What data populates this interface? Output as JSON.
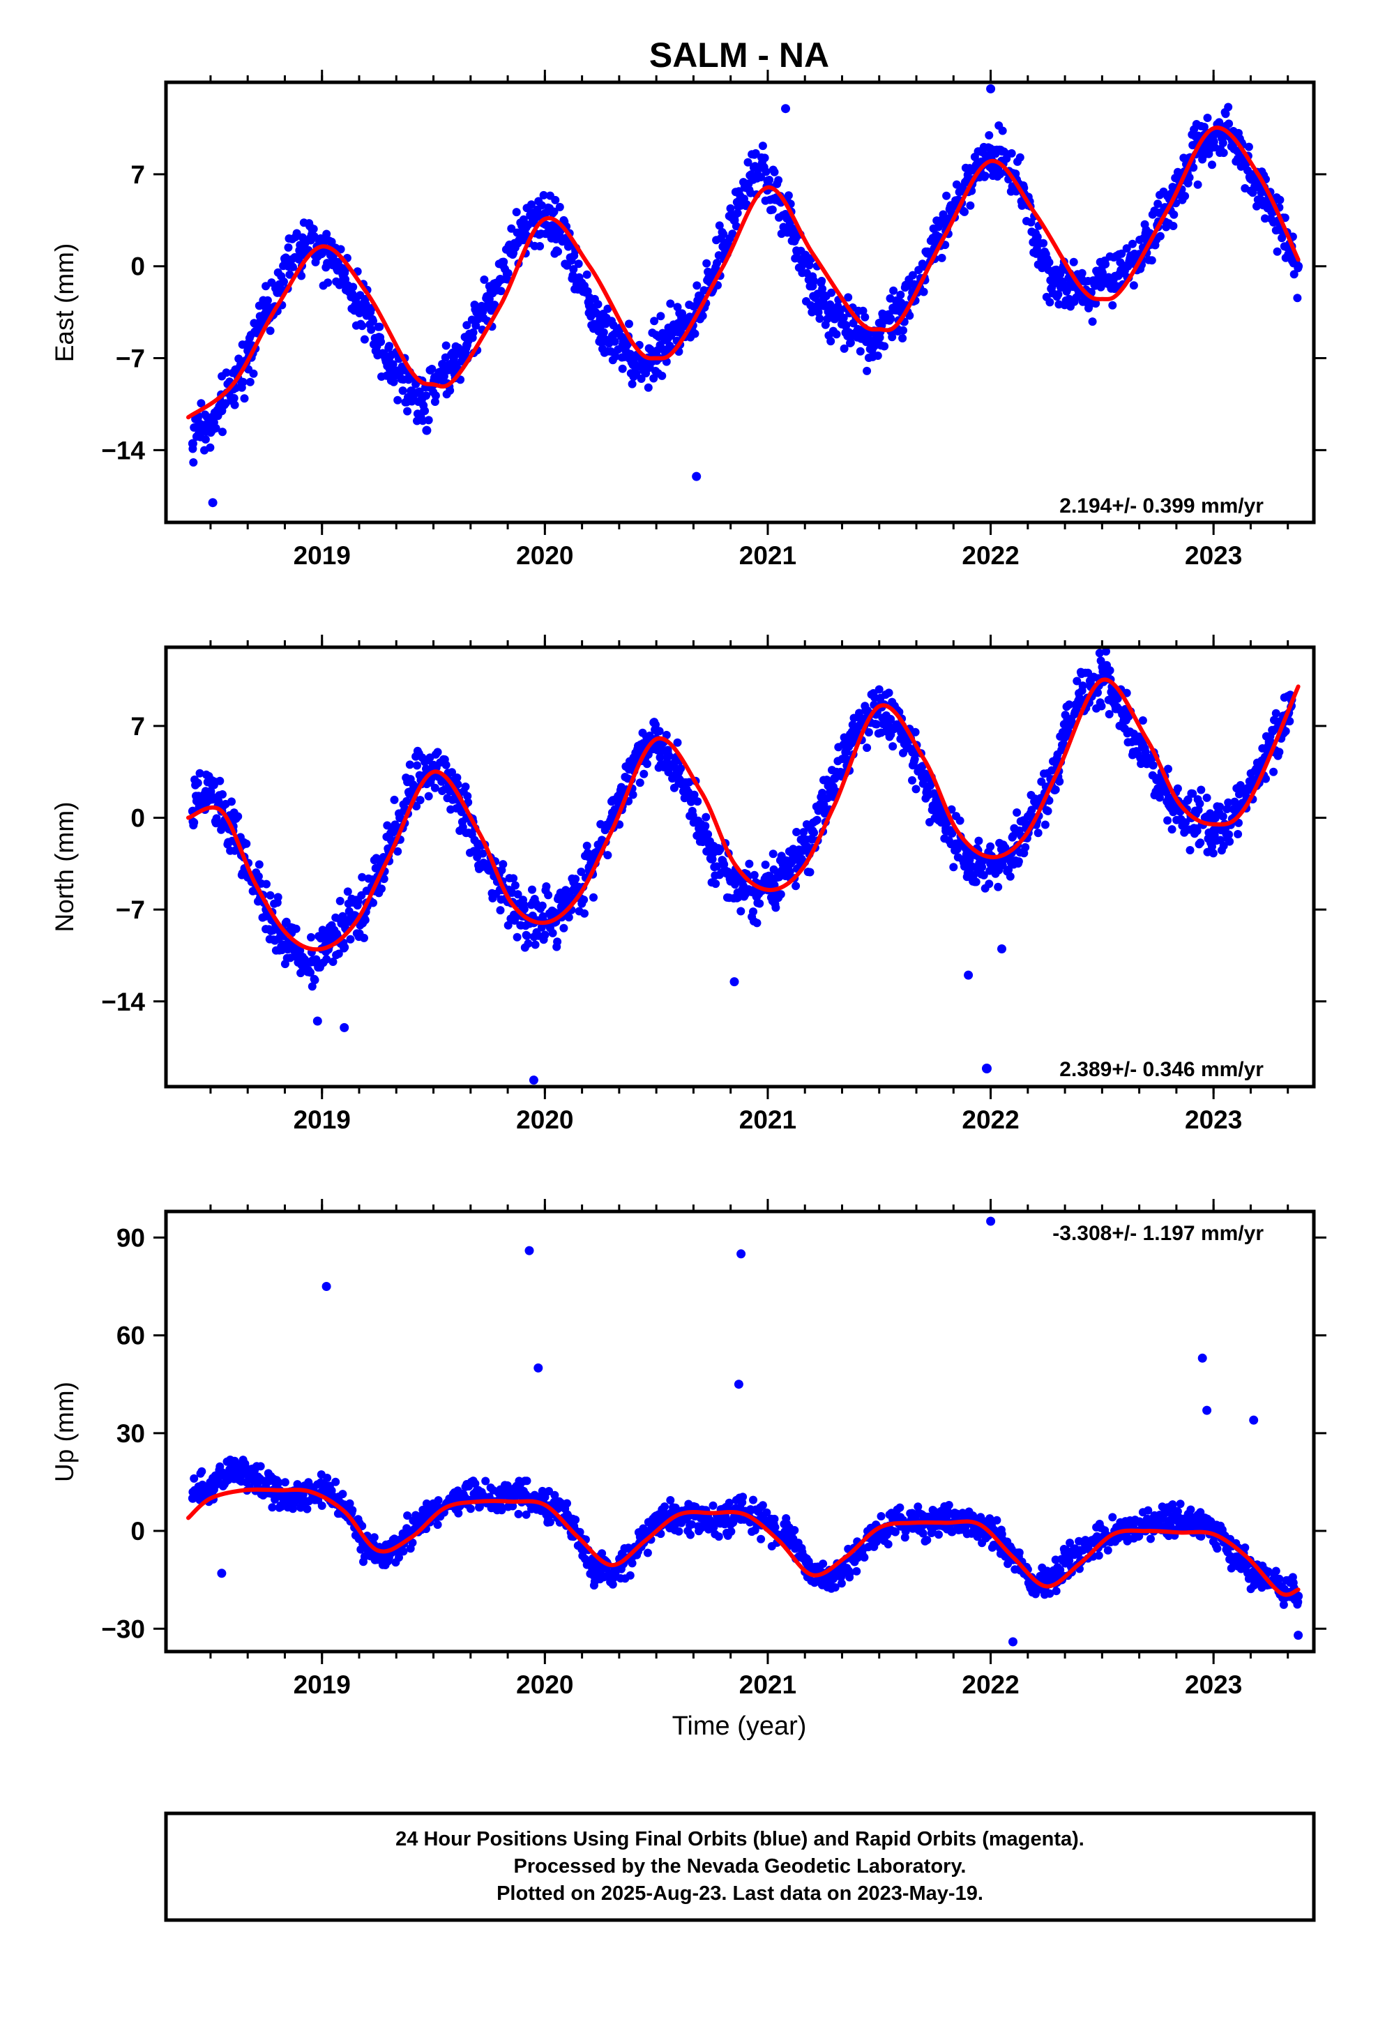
{
  "title": "SALM - NA",
  "xlabel": "Time (year)",
  "colors": {
    "points": "#0000ff",
    "fit": "#ff0000",
    "frame": "#000000"
  },
  "footer": {
    "line1": "24 Hour Positions Using Final Orbits (blue) and Rapid Orbits (magenta).",
    "line2": "Processed by the Nevada Geodetic Laboratory.",
    "line3": "Plotted on 2025-Aug-23. Last data on 2023-May-19."
  },
  "chart_data": [
    {
      "type": "scatter",
      "component": "east",
      "ylabel": "East (mm)",
      "rate": "2.194+/- 0.399 mm/yr",
      "xlim": [
        2018.3,
        2023.45
      ],
      "ylim": [
        -19.5,
        14
      ],
      "xticks": [
        2019,
        2020,
        2021,
        2022,
        2023
      ],
      "yticks": [
        7,
        0,
        -7,
        -14
      ],
      "grid": false,
      "fit_series": {
        "name": "",
        "x": [
          2018.4,
          2018.6,
          2018.8,
          2019.0,
          2019.2,
          2019.4,
          2019.5,
          2019.6,
          2019.8,
          2020.0,
          2020.2,
          2020.4,
          2020.5,
          2020.6,
          2020.8,
          2021.0,
          2021.2,
          2021.4,
          2021.5,
          2021.6,
          2021.8,
          2022.0,
          2022.2,
          2022.4,
          2022.5,
          2022.6,
          2022.8,
          2023.0,
          2023.2,
          2023.38
        ],
        "values": [
          -11.5,
          -9.0,
          -3.0,
          1.5,
          -2.0,
          -8.0,
          -9.0,
          -8.5,
          -3.0,
          3.6,
          0.0,
          -6.0,
          -7.0,
          -6.0,
          0.0,
          6.0,
          1.0,
          -4.0,
          -4.8,
          -4.0,
          2.5,
          8.0,
          4.0,
          -1.5,
          -2.5,
          -1.5,
          4.5,
          10.5,
          7.0,
          0.5
        ]
      },
      "point_series": {
        "name": "",
        "x": [
          2018.42,
          2018.45,
          2018.5,
          2018.55,
          2018.6,
          2018.65,
          2018.7,
          2018.75,
          2018.8,
          2018.85,
          2018.9,
          2018.95,
          2019.0,
          2019.05,
          2019.1,
          2019.15,
          2019.2,
          2019.25,
          2019.3,
          2019.35,
          2019.4,
          2019.45,
          2019.5,
          2019.55,
          2019.6,
          2019.65,
          2019.7,
          2019.75,
          2019.8,
          2019.85,
          2019.9,
          2019.95,
          2020.0,
          2020.05,
          2020.1,
          2020.15,
          2020.2,
          2020.25,
          2020.3,
          2020.35,
          2020.4,
          2020.45,
          2020.5,
          2020.55,
          2020.6,
          2020.65,
          2020.7,
          2020.75,
          2020.8,
          2020.85,
          2020.9,
          2020.95,
          2021.0,
          2021.05,
          2021.1,
          2021.15,
          2021.2,
          2021.25,
          2021.3,
          2021.35,
          2021.4,
          2021.45,
          2021.5,
          2021.55,
          2021.6,
          2021.65,
          2021.7,
          2021.75,
          2021.8,
          2021.85,
          2021.9,
          2021.95,
          2022.0,
          2022.05,
          2022.1,
          2022.15,
          2022.2,
          2022.25,
          2022.3,
          2022.35,
          2022.4,
          2022.45,
          2022.5,
          2022.55,
          2022.6,
          2022.65,
          2022.7,
          2022.75,
          2022.8,
          2022.85,
          2022.9,
          2022.95,
          2023.0,
          2023.05,
          2023.1,
          2023.15,
          2023.2,
          2023.25,
          2023.3,
          2023.35,
          2023.38,
          2018.51,
          2019.47,
          2020.68,
          2021.08,
          2022.0
        ],
        "values": [
          -13.5,
          -12.0,
          -12.5,
          -11.0,
          -9.0,
          -7.5,
          -5.0,
          -3.5,
          -2.0,
          0.0,
          1.2,
          2.0,
          1.0,
          0.5,
          -0.5,
          -2.5,
          -3.5,
          -5.5,
          -7.0,
          -8.0,
          -9.5,
          -10.0,
          -9.0,
          -8.0,
          -7.5,
          -6.0,
          -4.0,
          -2.5,
          -1.0,
          1.0,
          2.5,
          3.5,
          4.0,
          3.0,
          2.0,
          -1.0,
          -3.0,
          -4.5,
          -5.5,
          -6.0,
          -7.0,
          -7.5,
          -6.5,
          -5.5,
          -5.0,
          -4.0,
          -2.5,
          -1.0,
          1.5,
          3.5,
          6.0,
          7.5,
          6.5,
          5.0,
          3.0,
          0.5,
          -1.5,
          -3.0,
          -4.0,
          -4.5,
          -5.0,
          -5.5,
          -5.0,
          -4.0,
          -3.5,
          -2.0,
          0.0,
          2.0,
          3.5,
          5.0,
          6.5,
          7.5,
          8.5,
          8.0,
          7.0,
          5.5,
          2.5,
          0.0,
          -1.0,
          -1.5,
          -1.0,
          -2.0,
          -0.5,
          -1.0,
          0.0,
          0.5,
          2.0,
          3.0,
          4.5,
          6.5,
          8.0,
          9.5,
          10.0,
          10.5,
          9.5,
          8.0,
          6.5,
          5.0,
          3.0,
          1.5,
          0.0,
          -18.0,
          -12.5,
          -16.0,
          12.0,
          13.5
        ]
      }
    },
    {
      "type": "scatter",
      "component": "north",
      "ylabel": "North (mm)",
      "rate": "2.389+/- 0.346 mm/yr",
      "xlim": [
        2018.3,
        2023.45
      ],
      "ylim": [
        -20.5,
        13
      ],
      "xticks": [
        2019,
        2020,
        2021,
        2022,
        2023
      ],
      "yticks": [
        7,
        0,
        -7,
        -14
      ],
      "grid": false,
      "fit_series": {
        "name": "",
        "x": [
          2018.4,
          2018.55,
          2018.7,
          2018.85,
          2019.0,
          2019.15,
          2019.3,
          2019.5,
          2019.7,
          2019.85,
          2020.0,
          2020.15,
          2020.3,
          2020.5,
          2020.7,
          2020.85,
          2021.0,
          2021.15,
          2021.3,
          2021.5,
          2021.7,
          2021.85,
          2022.0,
          2022.15,
          2022.3,
          2022.5,
          2022.7,
          2022.85,
          2023.0,
          2023.15,
          2023.38
        ],
        "values": [
          0.0,
          0.5,
          -5.0,
          -9.0,
          -10.0,
          -8.0,
          -3.0,
          3.5,
          -1.0,
          -6.5,
          -8.0,
          -6.0,
          -1.0,
          6.0,
          2.0,
          -3.5,
          -5.5,
          -4.0,
          1.0,
          8.5,
          4.5,
          -1.0,
          -3.0,
          -1.5,
          3.5,
          10.5,
          6.0,
          1.0,
          -0.5,
          1.0,
          10.0
        ]
      },
      "point_series": {
        "name": "",
        "x": [
          2018.42,
          2018.45,
          2018.5,
          2018.55,
          2018.6,
          2018.65,
          2018.7,
          2018.75,
          2018.8,
          2018.85,
          2018.9,
          2018.95,
          2019.0,
          2019.05,
          2019.1,
          2019.15,
          2019.2,
          2019.25,
          2019.3,
          2019.35,
          2019.4,
          2019.45,
          2019.5,
          2019.55,
          2019.6,
          2019.65,
          2019.7,
          2019.75,
          2019.8,
          2019.85,
          2019.9,
          2019.95,
          2020.0,
          2020.05,
          2020.1,
          2020.15,
          2020.2,
          2020.25,
          2020.3,
          2020.35,
          2020.4,
          2020.45,
          2020.5,
          2020.55,
          2020.6,
          2020.65,
          2020.7,
          2020.75,
          2020.8,
          2020.85,
          2020.9,
          2020.95,
          2021.0,
          2021.05,
          2021.1,
          2021.15,
          2021.2,
          2021.25,
          2021.3,
          2021.35,
          2021.4,
          2021.45,
          2021.5,
          2021.55,
          2021.6,
          2021.65,
          2021.7,
          2021.75,
          2021.8,
          2021.85,
          2021.9,
          2021.95,
          2022.0,
          2022.05,
          2022.1,
          2022.15,
          2022.2,
          2022.25,
          2022.3,
          2022.35,
          2022.4,
          2022.45,
          2022.5,
          2022.55,
          2022.6,
          2022.65,
          2022.7,
          2022.75,
          2022.8,
          2022.85,
          2022.9,
          2022.95,
          2023.0,
          2023.05,
          2023.1,
          2023.15,
          2023.2,
          2023.25,
          2023.3,
          2023.35,
          2018.98,
          2019.1,
          2019.95,
          2020.85,
          2021.9,
          2022.05
        ],
        "values": [
          0.5,
          1.5,
          2.0,
          0.5,
          -1.0,
          -3.0,
          -5.0,
          -7.0,
          -8.5,
          -9.5,
          -10.5,
          -11.0,
          -10.0,
          -9.0,
          -8.0,
          -7.5,
          -6.5,
          -4.5,
          -2.5,
          0.0,
          2.0,
          3.0,
          4.0,
          3.0,
          2.0,
          0.0,
          -2.0,
          -4.0,
          -5.5,
          -6.5,
          -7.5,
          -8.0,
          -8.0,
          -7.5,
          -6.5,
          -5.5,
          -4.0,
          -2.0,
          0.0,
          2.0,
          4.0,
          5.5,
          6.0,
          5.0,
          3.5,
          1.5,
          -0.5,
          -2.5,
          -3.5,
          -4.5,
          -5.5,
          -6.0,
          -5.5,
          -4.5,
          -3.5,
          -2.5,
          -1.0,
          1.0,
          3.0,
          5.0,
          6.5,
          7.5,
          8.5,
          7.5,
          6.5,
          5.0,
          3.0,
          1.0,
          -1.0,
          -2.0,
          -3.0,
          -3.5,
          -3.5,
          -3.0,
          -2.5,
          -1.5,
          0.0,
          1.5,
          4.0,
          7.0,
          9.0,
          10.0,
          10.5,
          9.0,
          7.5,
          6.0,
          4.5,
          3.0,
          1.5,
          0.5,
          0.0,
          -0.5,
          -1.0,
          -0.5,
          0.5,
          1.5,
          3.0,
          5.0,
          7.0,
          9.0,
          -15.5,
          -16.0,
          -20.0,
          -12.5,
          -12.0,
          -10.0
        ]
      }
    },
    {
      "type": "scatter",
      "component": "up",
      "ylabel": "Up (mm)",
      "rate": "-3.308+/- 1.197 mm/yr",
      "xlim": [
        2018.3,
        2023.45
      ],
      "ylim": [
        -37,
        98
      ],
      "xticks": [
        2019,
        2020,
        2021,
        2022,
        2023
      ],
      "yticks": [
        90,
        60,
        30,
        0,
        -30
      ],
      "grid": false,
      "fit_series": {
        "name": "",
        "x": [
          2018.4,
          2018.5,
          2018.65,
          2018.8,
          2018.95,
          2019.1,
          2019.25,
          2019.4,
          2019.55,
          2019.7,
          2019.85,
          2020.0,
          2020.15,
          2020.3,
          2020.45,
          2020.6,
          2020.75,
          2020.9,
          2021.05,
          2021.2,
          2021.35,
          2021.5,
          2021.65,
          2021.8,
          2021.95,
          2022.1,
          2022.25,
          2022.4,
          2022.55,
          2022.7,
          2022.85,
          2023.0,
          2023.15,
          2023.3,
          2023.38
        ],
        "values": [
          4.0,
          10.0,
          12.5,
          12.5,
          12.0,
          6.0,
          -6.0,
          -2.0,
          7.0,
          9.0,
          9.0,
          8.0,
          -2.0,
          -10.5,
          -3.0,
          5.0,
          5.5,
          5.0,
          -3.0,
          -13.5,
          -8.0,
          1.0,
          2.5,
          2.5,
          2.0,
          -8.0,
          -17.0,
          -10.0,
          -1.0,
          0.0,
          -0.5,
          -1.0,
          -8.0,
          -19.0,
          -18.0
        ]
      },
      "point_series": {
        "name": "",
        "x": [
          2018.42,
          2018.5,
          2018.6,
          2018.7,
          2018.8,
          2018.9,
          2019.0,
          2019.1,
          2019.2,
          2019.3,
          2019.4,
          2019.5,
          2019.6,
          2019.7,
          2019.8,
          2019.9,
          2020.0,
          2020.1,
          2020.2,
          2020.3,
          2020.4,
          2020.5,
          2020.6,
          2020.7,
          2020.8,
          2020.9,
          2021.0,
          2021.1,
          2021.2,
          2021.3,
          2021.4,
          2021.5,
          2021.6,
          2021.7,
          2021.8,
          2021.9,
          2022.0,
          2022.1,
          2022.2,
          2022.3,
          2022.4,
          2022.5,
          2022.6,
          2022.7,
          2022.8,
          2022.9,
          2023.0,
          2023.1,
          2023.2,
          2023.3,
          2023.38,
          2019.02,
          2019.93,
          2019.97,
          2020.88,
          2020.87,
          2022.0,
          2022.95,
          2022.97,
          2023.18,
          2018.55,
          2022.1,
          2023.38
        ],
        "values": [
          10.0,
          14.0,
          20.0,
          16.0,
          12.0,
          10.0,
          12.0,
          8.0,
          -5.0,
          -8.0,
          0.0,
          6.0,
          10.0,
          11.0,
          10.0,
          12.0,
          8.0,
          5.0,
          -10.0,
          -14.0,
          -6.0,
          2.0,
          5.0,
          4.0,
          3.0,
          6.0,
          2.0,
          -2.0,
          -12.0,
          -14.0,
          -8.0,
          0.0,
          3.0,
          2.0,
          4.0,
          3.0,
          0.0,
          -8.0,
          -16.0,
          -14.0,
          -6.0,
          -2.0,
          1.0,
          2.0,
          3.0,
          2.0,
          0.0,
          -8.0,
          -14.0,
          -18.0,
          -20.0,
          75.0,
          86.0,
          50.0,
          85.0,
          45.0,
          95.0,
          53.0,
          37.0,
          34.0,
          -13.0,
          -34.0,
          -32.0
        ]
      }
    }
  ]
}
